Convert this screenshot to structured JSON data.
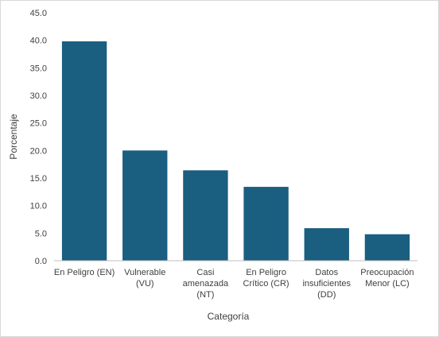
{
  "chart_data": {
    "type": "bar",
    "title": "",
    "xlabel": "Categoría",
    "ylabel": "Porcentaje",
    "ylim": [
      0,
      45
    ],
    "ytick_step": 5,
    "ytick_labels": [
      "0.0",
      "5.0",
      "10.0",
      "15.0",
      "20.0",
      "25.0",
      "30.0",
      "35.0",
      "40.0",
      "45.0"
    ],
    "categories": [
      [
        "En Peligro (EN)"
      ],
      [
        "Vulnerable",
        "(VU)"
      ],
      [
        "Casi",
        "amenazada",
        "(NT)"
      ],
      [
        "En Peligro",
        "Crítico (CR)"
      ],
      [
        "Datos",
        "insuficientes",
        "(DD)"
      ],
      [
        "Preocupación",
        "Menor (LC)"
      ]
    ],
    "values": [
      39.8,
      20.0,
      16.4,
      13.4,
      5.9,
      4.8
    ],
    "bar_color": "#1a5e80",
    "grid": false,
    "legend": "none"
  }
}
